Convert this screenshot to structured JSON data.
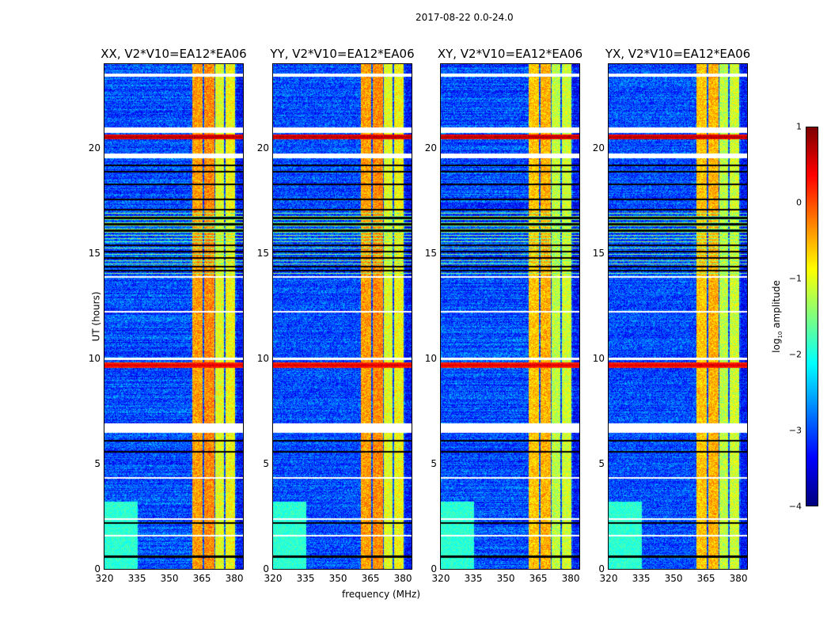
{
  "figure_title": "2017-08-22 0.0-24.0",
  "chart_data": {
    "type": "heatmap",
    "panels": [
      {
        "title": "XX, V2*V10=EA12*EA06"
      },
      {
        "title": "YY, V2*V10=EA12*EA06"
      },
      {
        "title": "XY, V2*V10=EA12*EA06"
      },
      {
        "title": "YX, V2*V10=EA12*EA06"
      }
    ],
    "xlabel": "frequency (MHz)",
    "ylabel": "UT (hours)",
    "xlim": [
      320,
      384
    ],
    "ylim": [
      0,
      24
    ],
    "xticks": [
      "320",
      "335",
      "350",
      "365",
      "380"
    ],
    "xtick_values": [
      320,
      335,
      350,
      365,
      380
    ],
    "yticks": [
      "0",
      "5",
      "10",
      "15",
      "20"
    ],
    "ytick_values": [
      0,
      5,
      10,
      15,
      20
    ],
    "colorbar": {
      "label_main": "log",
      "label_sub": "10",
      "label_rest": " amplitude",
      "range": [
        -4,
        1
      ],
      "ticks": [
        "1",
        "0",
        "−1",
        "−2",
        "−3",
        "−4"
      ],
      "tick_values": [
        1,
        0,
        -1,
        -2,
        -3,
        -4
      ],
      "colormap": "jet"
    },
    "background_level": -3.0,
    "bright_channel_bands_mhz": [
      [
        360.5,
        365.2,
        -0.4
      ],
      [
        366,
        370.5,
        -0.3
      ],
      [
        371,
        375,
        -1.0
      ],
      [
        375.6,
        380,
        -0.9
      ]
    ],
    "flagged_time_ranges_hours": [
      [
        6.5,
        6.95
      ],
      [
        19.55,
        19.75
      ],
      [
        20.75,
        21.0
      ],
      [
        23.4,
        23.55
      ],
      [
        12.2,
        12.3
      ],
      [
        13.85,
        13.95
      ],
      [
        9.95,
        10.05
      ],
      [
        4.3,
        4.38
      ],
      [
        2.35,
        2.42
      ],
      [
        1.55,
        1.62
      ]
    ],
    "dead_time_lines_hours": [
      0.6,
      2.2,
      5.6,
      6.1,
      14.2,
      14.4,
      14.8,
      15.1,
      15.4,
      16.1,
      16.4,
      16.7,
      17.1,
      17.6,
      18.3,
      18.9,
      19.2
    ],
    "rfi_time_rows_hours": [
      [
        20.55,
        0.8
      ],
      [
        9.7,
        0.6
      ]
    ],
    "low_freq_enhanced": {
      "freq_max_mhz": 335,
      "time_max_hours": 3.2,
      "level": -1.9
    }
  }
}
